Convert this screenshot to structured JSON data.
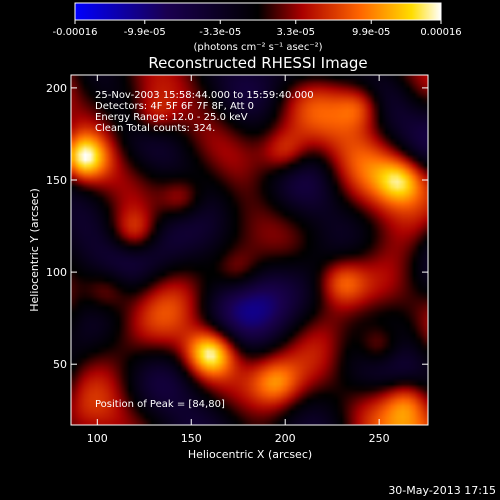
{
  "chart_data": {
    "type": "heatmap",
    "title": "Reconstructed RHESSI Image",
    "xlabel": "Heliocentric X (arcsec)",
    "ylabel": "Heliocentric Y (arcsec)",
    "xlim": [
      86,
      276
    ],
    "ylim": [
      17,
      207
    ],
    "x_ticks": [
      100,
      150,
      200,
      250
    ],
    "y_ticks": [
      50,
      100,
      150,
      200
    ],
    "colorbar": {
      "min": -0.00016,
      "max": 0.00016,
      "ticks": [
        -0.00016,
        -9.9e-05,
        -3.3e-05,
        3.3e-05,
        9.9e-05,
        0.00016
      ],
      "tick_labels": [
        "-0.00016",
        "-9.9e-05",
        "-3.3e-05",
        "3.3e-05",
        "9.9e-05",
        "0.00016"
      ],
      "unit_label": "(photons cm⁻² s⁻¹ asec⁻²)"
    },
    "annotations": {
      "time_range": "25-Nov-2003 15:58:44.000 to 15:59:40.000",
      "detectors": "Detectors: 4F 5F 6F 7F 8F, Att 0",
      "energy": "Energy Range: 12.0 - 25.0 keV",
      "clean": "Clean    Total counts: 324.",
      "peak": "Position of Peak = [84,80]"
    },
    "grid": false,
    "bright_sources": [
      {
        "x": 92,
        "y": 162,
        "value": 0.00014
      },
      {
        "x": 160,
        "y": 56,
        "value": 0.00015
      },
      {
        "x": 120,
        "y": 122,
        "value": 9e-05
      },
      {
        "x": 200,
        "y": 165,
        "value": 8e-05
      },
      {
        "x": 240,
        "y": 190,
        "value": 9e-05
      },
      {
        "x": 262,
        "y": 150,
        "value": 0.0001
      },
      {
        "x": 145,
        "y": 140,
        "value": 8e-05
      },
      {
        "x": 105,
        "y": 90,
        "value": 7e-05
      },
      {
        "x": 230,
        "y": 95,
        "value": 8e-05
      },
      {
        "x": 250,
        "y": 60,
        "value": 0.0001
      },
      {
        "x": 195,
        "y": 40,
        "value": 7e-05
      },
      {
        "x": 175,
        "y": 100,
        "value": 6e-05
      },
      {
        "x": 265,
        "y": 30,
        "value": 8e-05
      },
      {
        "x": 130,
        "y": 185,
        "value": 7e-05
      }
    ]
  },
  "footer": {
    "timestamp": "30-May-2013 17:15"
  }
}
